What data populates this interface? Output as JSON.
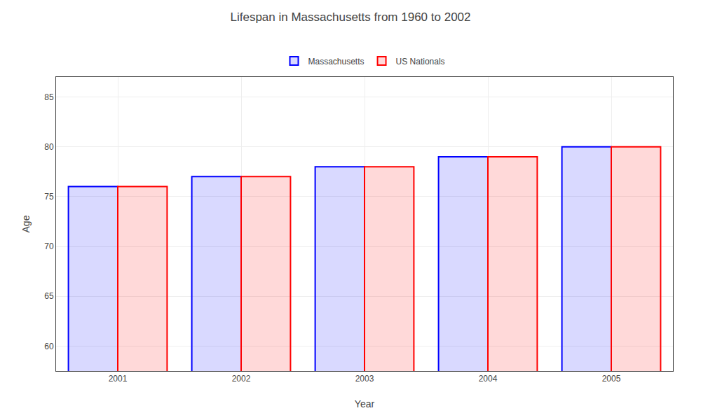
{
  "chart_data": {
    "type": "bar",
    "title": "Lifespan in Massachusetts from 1960 to 2002",
    "xlabel": "Year",
    "ylabel": "Age",
    "categories": [
      "2001",
      "2002",
      "2003",
      "2004",
      "2005"
    ],
    "series": [
      {
        "name": "Massachusetts",
        "color": "#0000ff",
        "values": [
          76,
          77,
          78,
          79,
          80
        ]
      },
      {
        "name": "US Nationals",
        "color": "#ff0000",
        "values": [
          76,
          77,
          78,
          79,
          80
        ]
      }
    ],
    "ylim": [
      57.5,
      87
    ],
    "yticks": [
      60,
      65,
      70,
      75,
      80,
      85
    ],
    "grid": true,
    "legend": "top"
  }
}
